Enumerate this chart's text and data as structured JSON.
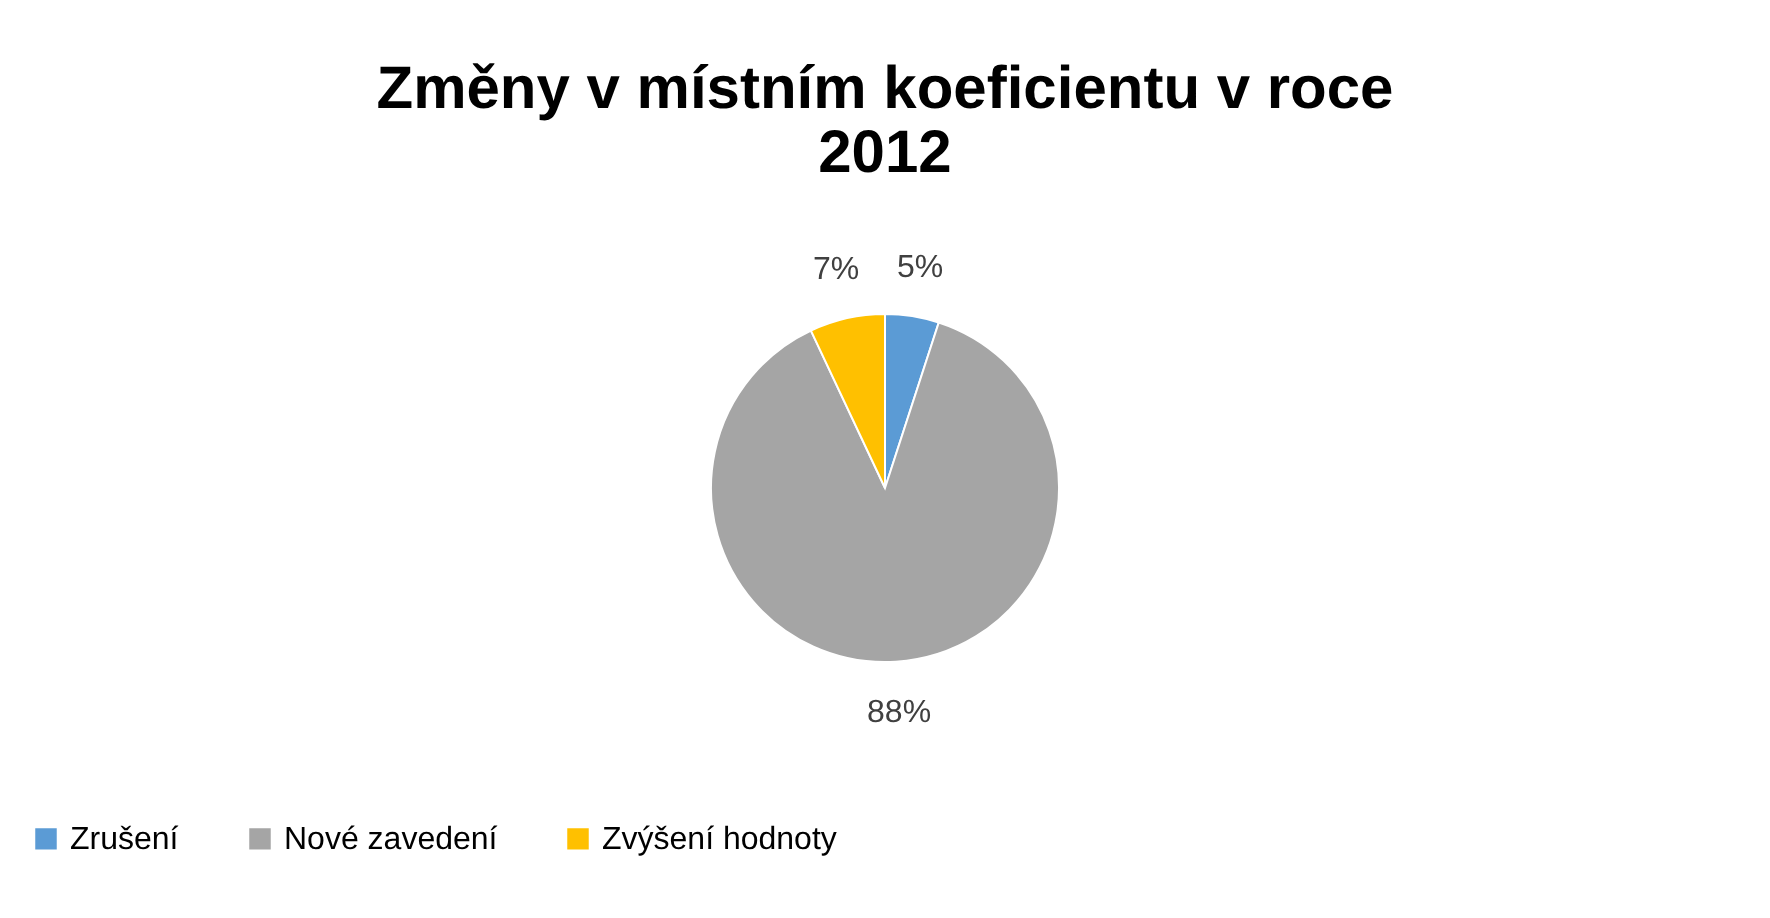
{
  "chart_data": {
    "type": "pie",
    "title": "Změny v místním koeficientu v roce 2012",
    "categories": [
      "Zrušení",
      "Nové zavedení",
      "Zvýšení hodnoty"
    ],
    "values": [
      5,
      88,
      7
    ],
    "colors": [
      "#5b9bd5",
      "#a5a5a5",
      "#ffc000"
    ],
    "value_labels": [
      "5%",
      "88%",
      "7%"
    ],
    "legend": "bottom"
  }
}
